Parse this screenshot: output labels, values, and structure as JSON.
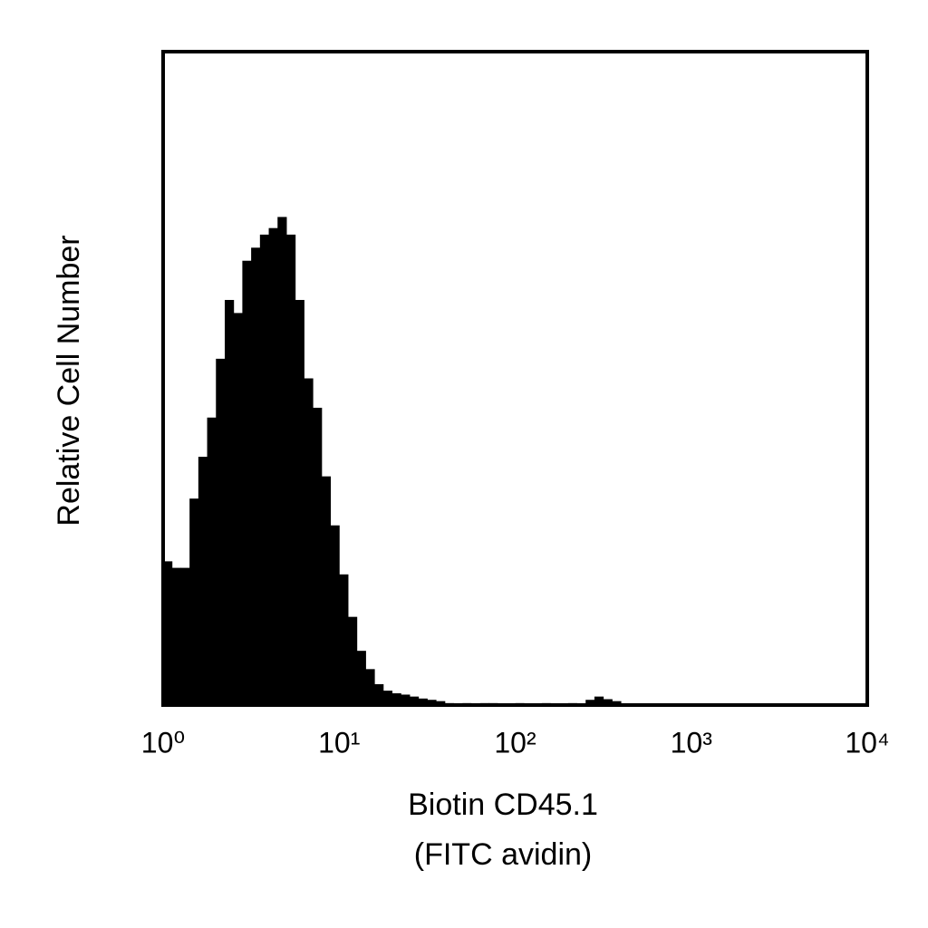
{
  "chart_data": {
    "type": "histogram",
    "x_label": [
      "Biotin CD45.1",
      "(FITC avidin)"
    ],
    "y_label": "Relative Cell Number",
    "xscale": "log",
    "xlim": [
      1,
      10000
    ],
    "xticks": [
      {
        "value": 1,
        "label": "10⁰"
      },
      {
        "value": 10,
        "label": "10¹"
      },
      {
        "value": 100,
        "label": "10²"
      },
      {
        "value": 1000,
        "label": "10³"
      },
      {
        "value": 10000,
        "label": "10⁴"
      }
    ],
    "ylim": [
      0,
      100
    ],
    "color": "#000000",
    "bins": [
      1,
      1.122,
      1.259,
      1.413,
      1.585,
      1.778,
      1.995,
      2.239,
      2.512,
      2.818,
      3.162,
      3.548,
      3.981,
      4.467,
      5.012,
      5.623,
      6.31,
      7.079,
      7.943,
      8.913,
      10,
      11.22,
      12.59,
      14.13,
      15.85,
      17.78,
      19.95,
      22.39,
      25.12,
      28.18,
      31.62,
      35.48,
      39.81,
      44.67,
      50.12,
      56.23,
      63.1,
      70.79,
      79.43,
      89.13,
      100,
      112.2,
      125.9,
      141.3,
      158.5,
      177.8,
      199.5,
      223.9,
      251.2,
      281.8,
      316.2,
      354.8,
      398.1
    ],
    "counts": [
      22,
      21,
      21,
      31.6,
      38,
      44,
      53,
      62,
      60,
      68,
      70,
      72,
      73,
      74.7,
      72,
      62,
      50,
      45.5,
      35,
      27.5,
      20,
      13.5,
      8.3,
      5.5,
      3.2,
      2.2,
      1.8,
      1.6,
      1.3,
      1,
      0.8,
      0.6,
      0.3,
      0,
      0.3,
      0,
      0.3,
      0.3,
      0,
      0,
      0.3,
      0,
      0,
      0.3,
      0,
      0,
      0.3,
      0,
      0.8,
      1.3,
      0.9,
      0.6
    ]
  }
}
